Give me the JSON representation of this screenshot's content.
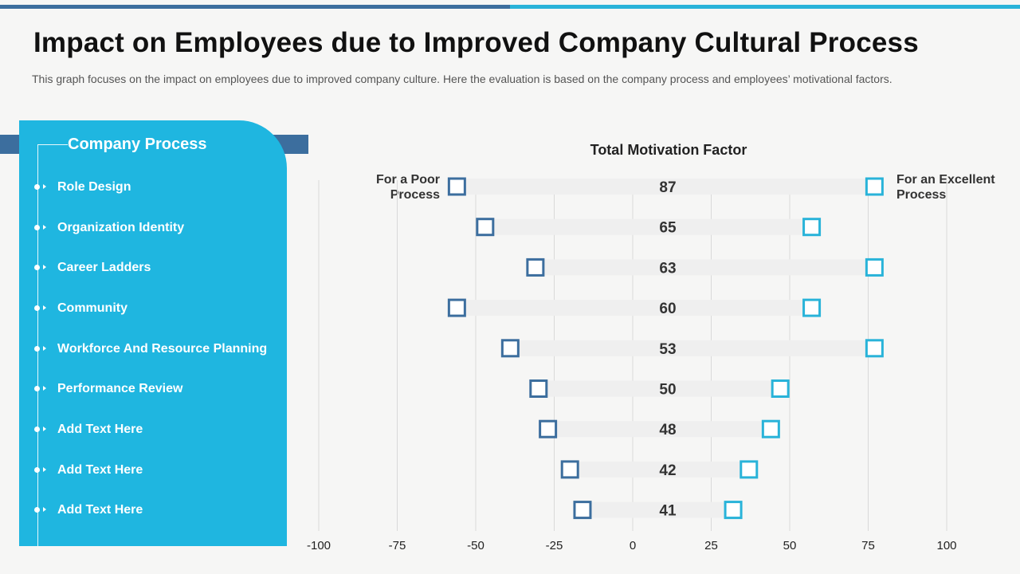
{
  "header": {
    "title": "Impact on Employees due to Improved Company Cultural Process",
    "subtitle": "This graph focuses on the impact on employees due to improved company culture.  Here the evaluation is based on the company process and employees’ motivational factors."
  },
  "panel": {
    "heading": "Company Process",
    "items": [
      {
        "label": "Role Design"
      },
      {
        "label": "Organization Identity"
      },
      {
        "label": "Career Ladders"
      },
      {
        "label": "Community"
      },
      {
        "label": "Workforce And Resource Planning"
      },
      {
        "label": "Performance Review"
      },
      {
        "label": "Add Text Here"
      },
      {
        "label": "Add Text Here"
      },
      {
        "label": "Add Text Here"
      }
    ]
  },
  "colors": {
    "panel_bg": "#1fb6e0",
    "poor_marker": "#3c6e9e",
    "excellent_marker": "#29b3d9",
    "bar": "#efefef",
    "grid": "#d9d9d9"
  },
  "chart_data": {
    "type": "bar",
    "title": "Total Motivation Factor",
    "left_label_lines": [
      "For a Poor",
      "Process"
    ],
    "right_label_lines": [
      "For an Excellent",
      "Process"
    ],
    "xlim": [
      -100,
      100
    ],
    "xticks": [
      -100,
      -75,
      -50,
      -25,
      0,
      25,
      50,
      75,
      100
    ],
    "grid": true,
    "rows": [
      {
        "total": 87,
        "poor": -56,
        "excellent": 77
      },
      {
        "total": 65,
        "poor": -47,
        "excellent": 57
      },
      {
        "total": 63,
        "poor": -31,
        "excellent": 77
      },
      {
        "total": 60,
        "poor": -56,
        "excellent": 57
      },
      {
        "total": 53,
        "poor": -39,
        "excellent": 77
      },
      {
        "total": 50,
        "poor": -30,
        "excellent": 47
      },
      {
        "total": 48,
        "poor": -27,
        "excellent": 44
      },
      {
        "total": 42,
        "poor": -20,
        "excellent": 37
      },
      {
        "total": 41,
        "poor": -16,
        "excellent": 32
      }
    ]
  }
}
